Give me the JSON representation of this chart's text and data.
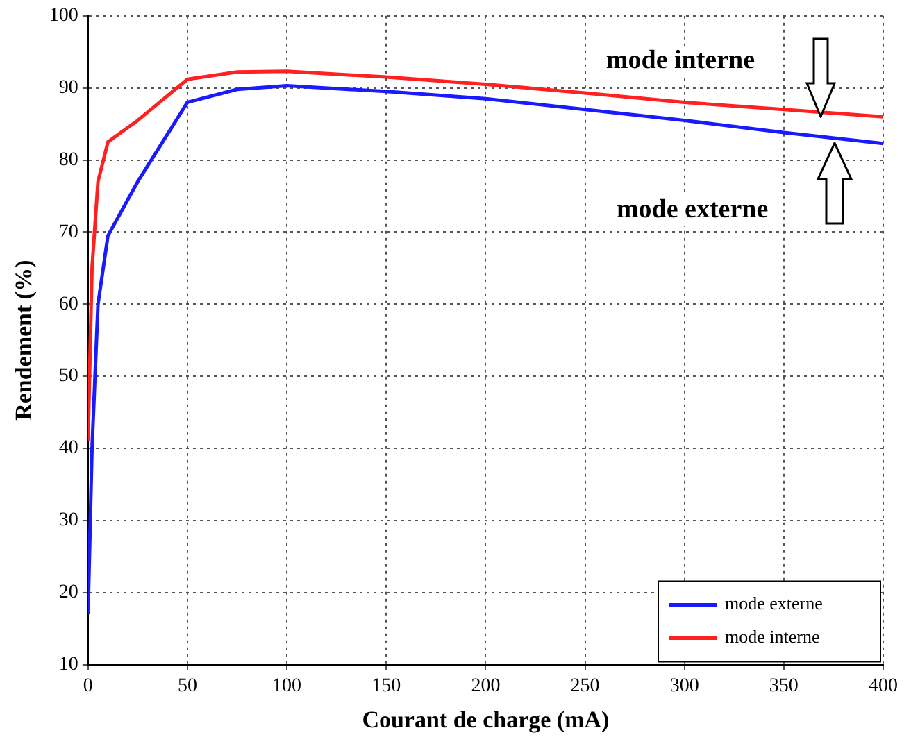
{
  "chart_data": {
    "type": "line",
    "xlabel": "Courant de charge (mA)",
    "ylabel": "Rendement (%)",
    "xlim": [
      0,
      400
    ],
    "xticks": [
      0,
      50,
      100,
      150,
      200,
      250,
      300,
      350,
      400
    ],
    "ylim": [
      10,
      100
    ],
    "yticks": [
      10,
      20,
      30,
      40,
      50,
      60,
      70,
      80,
      90,
      100
    ],
    "grid": true,
    "legend": "bottom right",
    "marker": "none",
    "line_style": "solid",
    "series": [
      {
        "name": "mode externe",
        "color": "#1a1aff",
        "x": [
          0,
          2,
          5,
          10,
          25,
          50,
          75,
          100,
          150,
          200,
          250,
          300,
          350,
          400
        ],
        "values": [
          17,
          40,
          60,
          69.5,
          77,
          88,
          89.8,
          90.3,
          89.5,
          88.5,
          87,
          85.5,
          83.8,
          82.3
        ]
      },
      {
        "name": "mode interne",
        "color": "#ff2020",
        "x": [
          0,
          2,
          5,
          10,
          25,
          50,
          75,
          100,
          150,
          200,
          250,
          300,
          350,
          400
        ],
        "values": [
          41,
          65,
          77,
          82.5,
          85.5,
          91.2,
          92.2,
          92.3,
          91.5,
          90.5,
          89.3,
          88,
          87,
          86
        ]
      }
    ],
    "annotations": [
      "mode interne",
      "mode externe"
    ]
  }
}
